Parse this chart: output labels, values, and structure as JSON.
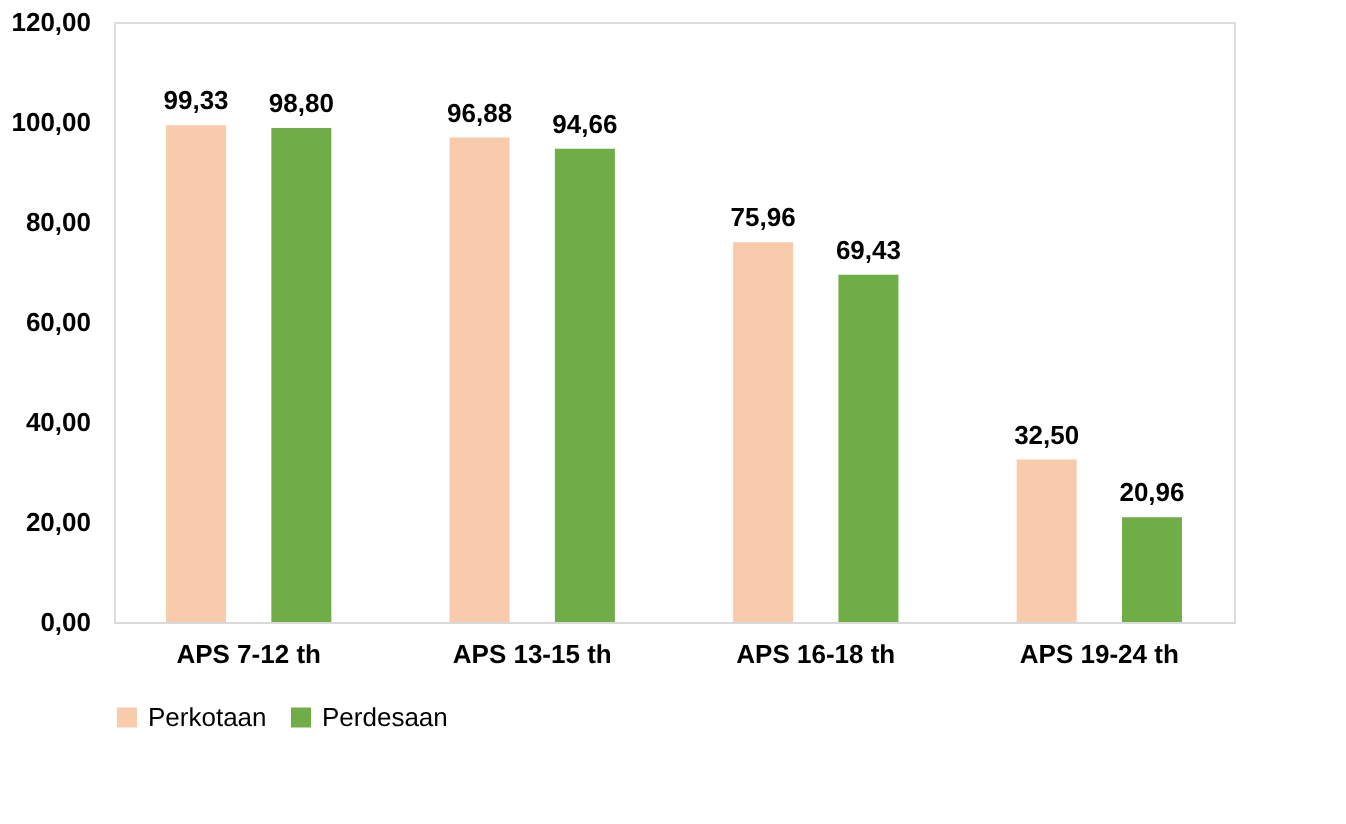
{
  "chart_data": {
    "type": "bar",
    "categories": [
      "APS 7-12 th",
      "APS 13-15 th",
      "APS 16-18 th",
      "APS 19-24 th"
    ],
    "series": [
      {
        "name": "Perkotaan",
        "color": "#f8cbad",
        "values": [
          99.33,
          96.88,
          75.96,
          32.5
        ],
        "value_labels": [
          "99,33",
          "96,88",
          "75,96",
          "32,50"
        ]
      },
      {
        "name": "Perdesaan",
        "color": "#70ad47",
        "values": [
          98.8,
          94.66,
          69.43,
          20.96
        ],
        "value_labels": [
          "98,80",
          "94,66",
          "69,43",
          "20,96"
        ]
      }
    ],
    "ylim": [
      0,
      120
    ],
    "yticks": [
      {
        "value": 0,
        "label": "0,00"
      },
      {
        "value": 20,
        "label": "20,00"
      },
      {
        "value": 40,
        "label": "40,00"
      },
      {
        "value": 60,
        "label": "60,00"
      },
      {
        "value": 80,
        "label": "80,00"
      },
      {
        "value": 100,
        "label": "100,00"
      },
      {
        "value": 120,
        "label": "120,00"
      }
    ],
    "grid": false,
    "legend": "bottom"
  }
}
